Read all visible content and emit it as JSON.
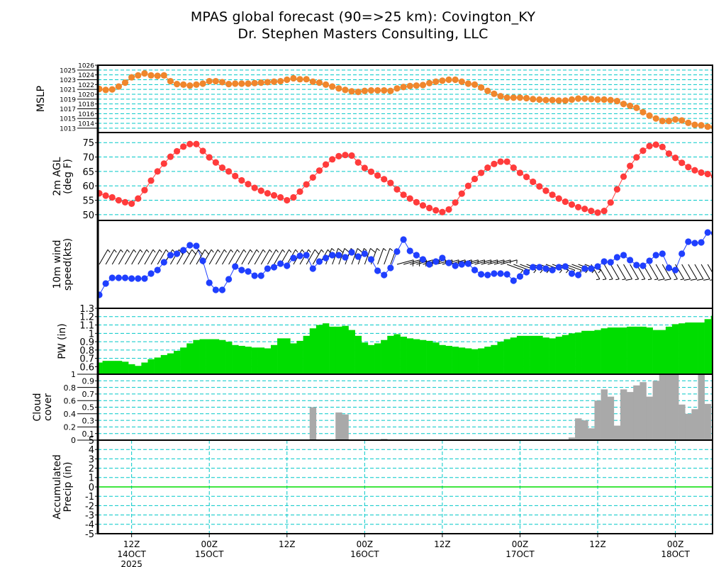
{
  "chart_data": {
    "type": "line",
    "title": [
      "MPAS global forecast (90=>25 km): Covington_KY",
      "Dr. Stephen Masters Consulting, LLC"
    ],
    "x": {
      "units": "hours from 07Z 14OCT 2025",
      "start_hour": 0,
      "end_hour": 95,
      "step_hours": 1,
      "ticks": [
        {
          "hour": 5,
          "label": "12Z",
          "sub": "14OCT",
          "sub2": "2025"
        },
        {
          "hour": 17,
          "label": "00Z",
          "sub": "15OCT",
          "sub2": ""
        },
        {
          "hour": 29,
          "label": "12Z",
          "sub": "",
          "sub2": ""
        },
        {
          "hour": 41,
          "label": "00Z",
          "sub": "16OCT",
          "sub2": ""
        },
        {
          "hour": 53,
          "label": "12Z",
          "sub": "",
          "sub2": ""
        },
        {
          "hour": 65,
          "label": "00Z",
          "sub": "17OCT",
          "sub2": ""
        },
        {
          "hour": 77,
          "label": "12Z",
          "sub": "",
          "sub2": ""
        },
        {
          "hour": 89,
          "label": "00Z",
          "sub": "18OCT",
          "sub2": ""
        }
      ]
    },
    "panels": [
      {
        "id": "mslp",
        "kind": "line",
        "ylabel": [
          "MSLP"
        ],
        "color": "#f0862c",
        "ylim": [
          1012.1,
          1026
        ],
        "yticks": [
          1013,
          1014,
          1015,
          1016,
          1017,
          1018,
          1019,
          1020,
          1021,
          1022,
          1023,
          1024,
          1025,
          1026
        ],
        "values": [
          1021.1,
          1020.9,
          1021.0,
          1021.6,
          1022.4,
          1023.5,
          1023.9,
          1024.3,
          1023.9,
          1023.8,
          1023.9,
          1022.7,
          1022.1,
          1022.0,
          1021.8,
          1022.0,
          1022.2,
          1022.7,
          1022.7,
          1022.5,
          1022.1,
          1022.2,
          1022.2,
          1022.2,
          1022.3,
          1022.4,
          1022.5,
          1022.6,
          1022.7,
          1023.0,
          1023.3,
          1023.1,
          1023.1,
          1022.6,
          1022.4,
          1022.0,
          1021.6,
          1021.2,
          1020.9,
          1020.6,
          1020.5,
          1020.7,
          1020.8,
          1020.8,
          1020.8,
          1020.7,
          1021.2,
          1021.5,
          1021.7,
          1021.8,
          1021.9,
          1022.3,
          1022.6,
          1022.8,
          1023.0,
          1023.0,
          1022.6,
          1022.2,
          1022.0,
          1021.4,
          1020.7,
          1020.1,
          1019.6,
          1019.3,
          1019.3,
          1019.3,
          1019.2,
          1019.0,
          1018.9,
          1018.8,
          1018.8,
          1018.7,
          1018.7,
          1018.9,
          1019.1,
          1019.1,
          1019.0,
          1018.9,
          1018.9,
          1018.8,
          1018.6,
          1018.0,
          1017.6,
          1017.2,
          1016.3,
          1015.6,
          1015.0,
          1014.5,
          1014.5,
          1014.8,
          1014.6,
          1014.1,
          1013.7,
          1013.6,
          1013.3,
          1013.2
        ]
      },
      {
        "id": "temp2m",
        "kind": "line",
        "ylabel": [
          "2m AGL",
          "(deg F)"
        ],
        "color": "#ff3b3b",
        "ylim": [
          48,
          78.5
        ],
        "yticks": [
          50,
          55,
          60,
          65,
          70,
          75
        ],
        "values": [
          57.4,
          56.6,
          56.0,
          55.0,
          54.3,
          53.8,
          55.6,
          58.5,
          61.8,
          65.0,
          67.7,
          70.1,
          72.0,
          73.6,
          74.5,
          74.5,
          72.1,
          69.9,
          68.1,
          66.3,
          65.0,
          63.4,
          61.9,
          60.6,
          59.3,
          58.3,
          57.4,
          56.7,
          56.0,
          55.0,
          56.0,
          58.0,
          60.5,
          62.9,
          65.3,
          67.4,
          69.2,
          70.3,
          70.7,
          70.5,
          68.1,
          66.2,
          64.9,
          63.6,
          62.3,
          61.0,
          58.8,
          56.9,
          55.6,
          54.3,
          53.2,
          52.3,
          51.5,
          50.9,
          51.8,
          54.2,
          57.3,
          60.0,
          62.4,
          64.5,
          66.3,
          67.6,
          68.4,
          68.4,
          66.3,
          64.5,
          63.1,
          61.4,
          59.8,
          58.3,
          56.9,
          55.6,
          54.5,
          53.5,
          52.6,
          52.0,
          51.3,
          50.7,
          51.3,
          54.2,
          58.8,
          63.2,
          66.9,
          69.9,
          72.2,
          73.8,
          74.3,
          73.5,
          71.2,
          69.7,
          68.0,
          66.5,
          65.4,
          64.6,
          64.1,
          63.3
        ]
      },
      {
        "id": "wind10m",
        "kind": "wind",
        "ylabel": [
          "10m wind",
          "speed(kts)"
        ],
        "color": "#1f3fff",
        "ylim": [
          0,
          12.4
        ],
        "yticks": [],
        "values": [
          1.9,
          3.5,
          4.3,
          4.3,
          4.3,
          4.2,
          4.2,
          4.2,
          4.9,
          5.4,
          6.5,
          7.5,
          7.7,
          8.2,
          8.9,
          8.8,
          6.7,
          3.6,
          2.6,
          2.6,
          4.1,
          5.9,
          5.4,
          5.2,
          4.6,
          4.6,
          5.6,
          5.8,
          6.3,
          6.0,
          7.1,
          7.4,
          7.5,
          5.6,
          6.6,
          7.1,
          7.5,
          7.5,
          7.2,
          7.9,
          7.3,
          7.7,
          6.9,
          5.3,
          4.7,
          5.7,
          8.0,
          9.7,
          8.1,
          7.5,
          6.9,
          6.2,
          6.6,
          7.1,
          6.4,
          6.0,
          6.2,
          6.3,
          5.4,
          4.8,
          4.7,
          4.9,
          4.9,
          4.8,
          3.9,
          4.5,
          5.1,
          5.8,
          5.8,
          5.6,
          5.4,
          5.8,
          5.9,
          4.9,
          4.7,
          5.6,
          5.6,
          5.9,
          6.6,
          6.5,
          7.2,
          7.5,
          6.8,
          6.1,
          6.0,
          6.7,
          7.5,
          7.7,
          5.7,
          5.4,
          7.7,
          9.4,
          9.2,
          9.3,
          10.7,
          10.6
        ],
        "direction_segments": [
          {
            "from_hour": 0,
            "to_hour": 34,
            "deg": 30
          },
          {
            "from_hour": 35,
            "to_hour": 45,
            "deg": 20
          },
          {
            "from_hour": 46,
            "to_hour": 62,
            "deg": 75
          },
          {
            "from_hour": 63,
            "to_hour": 75,
            "deg": 110
          },
          {
            "from_hour": 76,
            "to_hour": 95,
            "deg": 150
          }
        ]
      },
      {
        "id": "pw",
        "kind": "bars",
        "ylabel": [
          "PW (in)"
        ],
        "color": "#00dd00",
        "ylim": [
          0.51,
          1.3
        ],
        "yticks": [
          0.6,
          0.7,
          0.8,
          0.9,
          1,
          1.1,
          1.2,
          1.3
        ],
        "values": [
          0.65,
          0.67,
          0.67,
          0.67,
          0.66,
          0.63,
          0.61,
          0.65,
          0.69,
          0.71,
          0.74,
          0.76,
          0.79,
          0.83,
          0.88,
          0.92,
          0.93,
          0.93,
          0.93,
          0.92,
          0.9,
          0.86,
          0.85,
          0.84,
          0.83,
          0.83,
          0.82,
          0.86,
          0.94,
          0.94,
          0.88,
          0.91,
          0.97,
          1.06,
          1.1,
          1.12,
          1.08,
          1.08,
          1.09,
          1.04,
          0.97,
          0.89,
          0.86,
          0.88,
          0.92,
          0.97,
          0.99,
          0.96,
          0.94,
          0.93,
          0.92,
          0.91,
          0.89,
          0.86,
          0.85,
          0.84,
          0.83,
          0.82,
          0.81,
          0.82,
          0.84,
          0.86,
          0.9,
          0.93,
          0.95,
          0.97,
          0.97,
          0.97,
          0.97,
          0.95,
          0.94,
          0.96,
          0.98,
          1.0,
          1.01,
          1.03,
          1.03,
          1.04,
          1.06,
          1.07,
          1.07,
          1.07,
          1.08,
          1.08,
          1.08,
          1.07,
          1.04,
          1.04,
          1.08,
          1.11,
          1.12,
          1.13,
          1.13,
          1.13,
          1.17,
          1.21
        ]
      },
      {
        "id": "cloud",
        "kind": "bars",
        "ylabel": [
          "Cloud",
          "cover"
        ],
        "color": "#a9a9a9",
        "ylim": [
          0,
          1
        ],
        "yticks": [
          0,
          0.1,
          0.2,
          0.3,
          0.4,
          0.5,
          0.6,
          0.7,
          0.8,
          0.9,
          1
        ],
        "values": [
          0,
          0,
          0,
          0,
          0,
          0,
          0,
          0,
          0,
          0,
          0,
          0,
          0,
          0,
          0,
          0,
          0,
          0,
          0,
          0,
          0,
          0,
          0,
          0,
          0,
          0,
          0,
          0,
          0,
          0,
          0,
          0,
          0,
          0.5,
          0,
          0,
          0,
          0.42,
          0.39,
          0,
          0,
          0,
          0,
          0,
          0.02,
          0,
          0,
          0,
          0,
          0,
          0,
          0,
          0,
          0,
          0,
          0,
          0,
          0,
          0,
          0,
          0,
          0,
          0,
          0,
          0,
          0,
          0,
          0,
          0,
          0,
          0,
          0,
          0,
          0.04,
          0.33,
          0.3,
          0.18,
          0.6,
          0.77,
          0.66,
          0.22,
          0.77,
          0.73,
          0.83,
          0.88,
          0.66,
          0.9,
          0.99,
          0.99,
          0.99,
          0.54,
          0.4,
          0.47,
          0.99,
          0.55,
          0.02
        ]
      },
      {
        "id": "precip",
        "kind": "line-flat",
        "ylabel": [
          "Accumulated",
          "Precip (in)"
        ],
        "color": "#00dd00",
        "ylim": [
          -5,
          5
        ],
        "yticks": [
          -5,
          -4,
          -3,
          -2,
          -1,
          0,
          1,
          2,
          3,
          4,
          5
        ],
        "values": [
          0,
          0,
          0,
          0,
          0,
          0,
          0,
          0,
          0,
          0,
          0,
          0,
          0,
          0,
          0,
          0,
          0,
          0,
          0,
          0,
          0,
          0,
          0,
          0,
          0,
          0,
          0,
          0,
          0,
          0,
          0,
          0,
          0,
          0,
          0,
          0,
          0,
          0,
          0,
          0,
          0,
          0,
          0,
          0,
          0,
          0,
          0,
          0,
          0,
          0,
          0,
          0,
          0,
          0,
          0,
          0,
          0,
          0,
          0,
          0,
          0,
          0,
          0,
          0,
          0,
          0,
          0,
          0,
          0,
          0,
          0,
          0,
          0,
          0,
          0,
          0,
          0,
          0,
          0,
          0,
          0,
          0,
          0,
          0,
          0,
          0,
          0,
          0,
          0,
          0,
          0,
          0,
          0,
          0,
          0,
          0
        ]
      }
    ],
    "grid_color": "#00c8c8",
    "grid": true
  }
}
